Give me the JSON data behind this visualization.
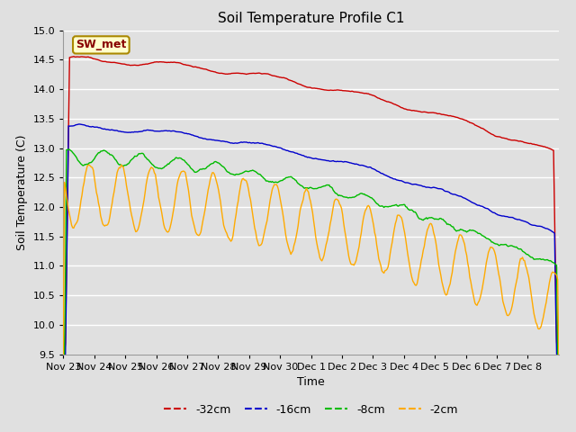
{
  "title": "Soil Temperature Profile C1",
  "xlabel": "Time",
  "ylabel": "Soil Temperature (C)",
  "ylim": [
    9.5,
    15.0
  ],
  "yticks": [
    9.5,
    10.0,
    10.5,
    11.0,
    11.5,
    12.0,
    12.5,
    13.0,
    13.5,
    14.0,
    14.5,
    15.0
  ],
  "background_color": "#e0e0e0",
  "plot_bg_color": "#e0e0e0",
  "grid_color": "#ffffff",
  "annotation_label": "SW_met",
  "annotation_bg": "#ffffcc",
  "annotation_border": "#aa8800",
  "legend_labels": [
    "-32cm",
    "-16cm",
    "-8cm",
    "-2cm"
  ],
  "line_colors": [
    "#cc0000",
    "#0000cc",
    "#00bb00",
    "#ffaa00"
  ],
  "xtick_labels": [
    "Nov 23",
    "Nov 24",
    "Nov 25",
    "Nov 26",
    "Nov 27",
    "Nov 28",
    "Nov 29",
    "Nov 30",
    "Dec 1",
    "Dec 2",
    "Dec 3",
    "Dec 4",
    "Dec 5",
    "Dec 6",
    "Dec 7",
    "Dec 8"
  ],
  "n_points": 480,
  "title_fontsize": 11,
  "label_fontsize": 9,
  "tick_fontsize": 8
}
